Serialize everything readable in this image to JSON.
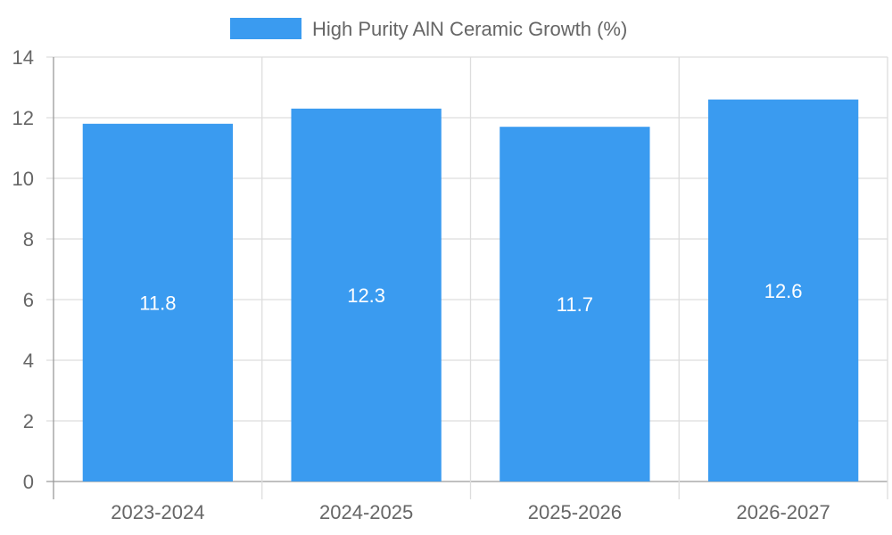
{
  "chart_data": {
    "type": "bar",
    "categories": [
      "2023-2024",
      "2024-2025",
      "2025-2026",
      "2026-2027"
    ],
    "series": [
      {
        "name": "High Purity AlN Ceramic Growth (%)",
        "values": [
          11.8,
          12.3,
          11.7,
          12.6
        ],
        "color": "#3a9bf0"
      }
    ],
    "ylim": [
      0,
      14
    ],
    "yticks": [
      "0",
      "2",
      "4",
      "6",
      "8",
      "10",
      "12",
      "14"
    ],
    "grid": true,
    "legend_position": "top-center",
    "data_labels": [
      "11.8",
      "12.3",
      "11.7",
      "12.6"
    ]
  }
}
